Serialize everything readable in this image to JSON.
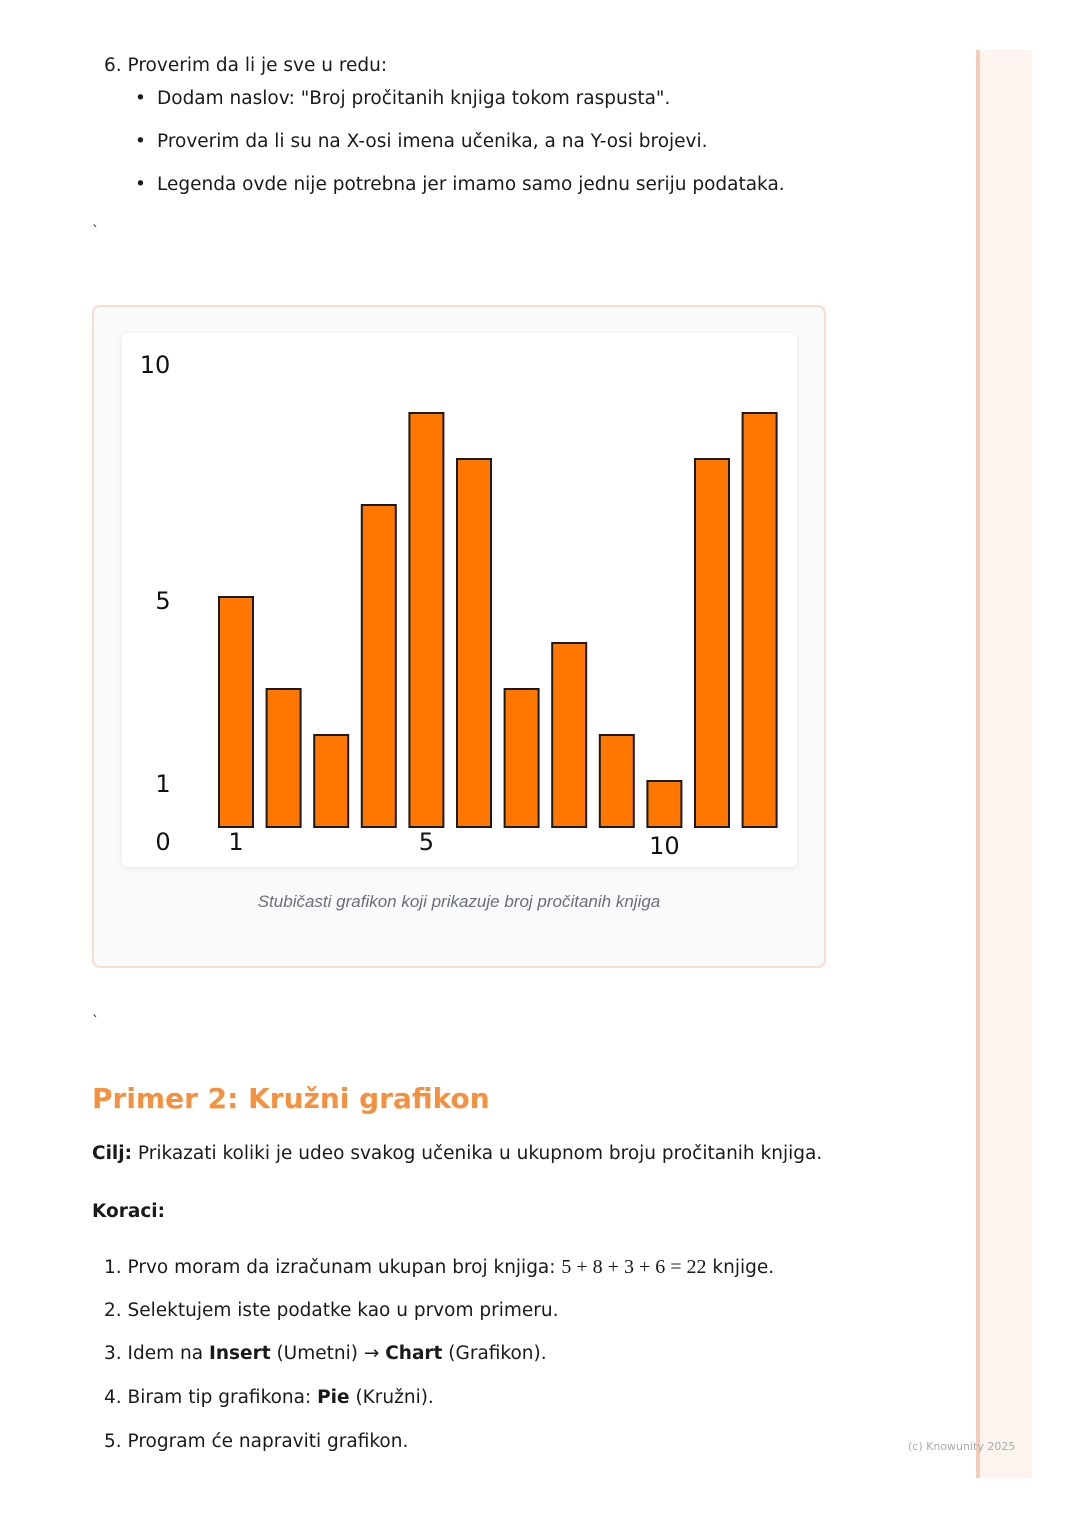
{
  "step6": {
    "title": "6. Proverim da li je sve u redu:",
    "bullets": [
      "Dodam naslov: \"Broj pročitanih knjiga tokom raspusta\".",
      "Proverim da li su na X-osi imena učenika, a na Y-osi brojevi.",
      "Legenda ovde nije potrebna jer imamo samo jednu seriju podataka."
    ]
  },
  "backtick": "`",
  "chart_data": {
    "type": "bar",
    "categories": [
      1,
      2,
      3,
      4,
      5,
      6,
      7,
      8,
      9,
      10,
      11,
      12
    ],
    "values": [
      5,
      3,
      2,
      7,
      9,
      8,
      3,
      4,
      2,
      1,
      8,
      9
    ],
    "x_tick_labels": [
      "1",
      "5",
      "10"
    ],
    "y_tick_labels": [
      "10",
      "5",
      "1",
      "0"
    ],
    "ylim": [
      0,
      10
    ],
    "grid": false,
    "bar_color": "#ff7700",
    "caption": "Stubičasti grafikon koji prikazuje broj pročitanih knjiga"
  },
  "section2": {
    "heading": "Primer 2: Kružni grafikon",
    "goal_label": "Cilj:",
    "goal_text": " Prikazati koliki je udeo svakog učenika u ukupnom broju pročitanih knjiga.",
    "steps_label": "Koraci:",
    "steps": [
      {
        "pre": "1. Prvo moram da izračunam ukupan broj knjiga: ",
        "formula": "5 + 8 + 3 + 6 = 22",
        "post": " knjige."
      },
      {
        "pre": "2. Selektujem iste podatke kao u prvom primeru."
      },
      {
        "pre": "3. Idem na ",
        "b1": "Insert",
        "mid": " (Umetni) → ",
        "b2": "Chart",
        "post": " (Grafikon)."
      },
      {
        "pre": "4. Biram tip grafikona: ",
        "b1": "Pie",
        "post": " (Kružni)."
      },
      {
        "pre": "5. Program će napraviti grafikon."
      }
    ]
  },
  "footer": "(c) Knowunity 2025",
  "colors": {
    "accent": "#f5913e",
    "bar": "#ff7700",
    "sidebar": "#fdf4ef"
  }
}
